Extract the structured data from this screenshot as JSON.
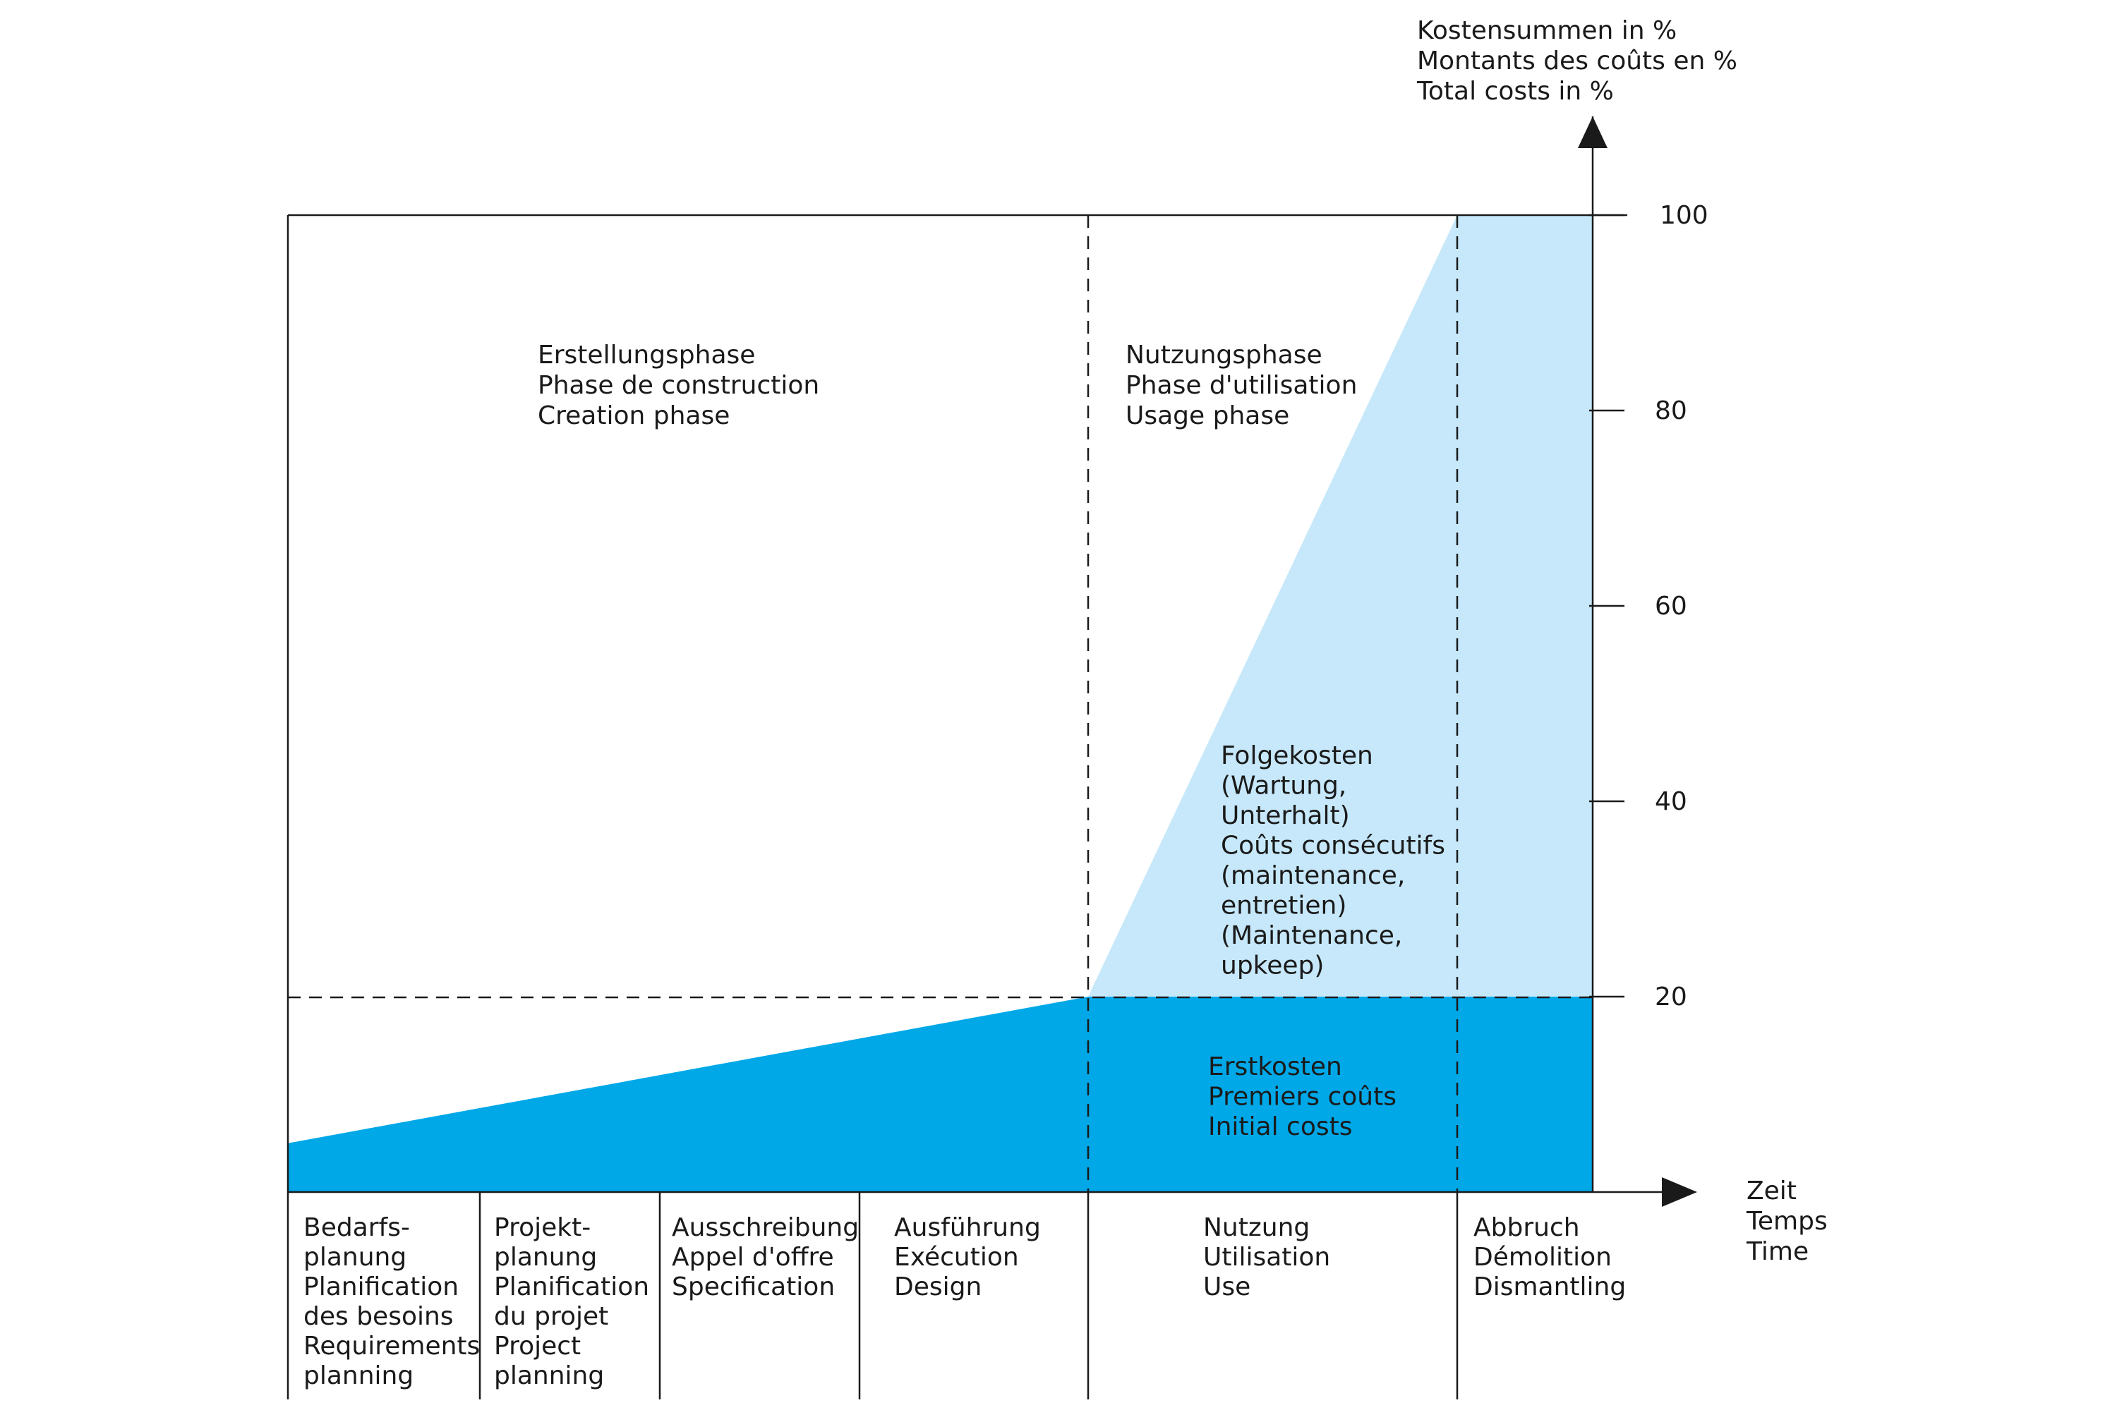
{
  "chart_data": {
    "type": "area",
    "y_axis_label": [
      "Kostensummen in %",
      "Montants des coûts en %",
      "Total costs in %"
    ],
    "x_axis_label": [
      "Zeit",
      "Temps",
      "Time"
    ],
    "y_ticks": [
      20,
      40,
      60,
      80,
      100
    ],
    "ylim": [
      0,
      100
    ],
    "phases": [
      {
        "id": "bedarf",
        "label": [
          "Bedarfs-",
          "planung",
          "Planification",
          "des besoins",
          "Requirements",
          "planning"
        ]
      },
      {
        "id": "projekt",
        "label": [
          "Projekt-",
          "planung",
          "Planification",
          "du projet",
          "Project",
          "planning"
        ]
      },
      {
        "id": "ausschreibung",
        "label": [
          "Ausschreibung",
          "Appel d'offre",
          "Specification"
        ]
      },
      {
        "id": "ausfuehrung",
        "label": [
          "Ausführung",
          "Exécution",
          "Design"
        ]
      },
      {
        "id": "nutzung",
        "label": [
          "Nutzung",
          "Utilisation",
          "Use"
        ]
      },
      {
        "id": "abbruch",
        "label": [
          "Abbruch",
          "Démolition",
          "Dismantling"
        ]
      }
    ],
    "period_labels": {
      "creation": [
        "Erstellungsphase",
        "Phase de construction",
        "Creation phase"
      ],
      "usage": [
        "Nutzungsphase",
        "Phase d'utilisation",
        "Usage phase"
      ]
    },
    "series": [
      {
        "name": [
          "Erstkosten",
          "Premiers coûts",
          "Initial costs"
        ],
        "color": "#00a8e8",
        "points": [
          {
            "at": "start of Bedarfsplanung",
            "y": 0
          },
          {
            "at": "start of Ausführung",
            "y": 5
          },
          {
            "at": "start of Nutzung",
            "y": 20
          },
          {
            "at": "end of Abbruch",
            "y": 20
          }
        ]
      },
      {
        "name": [
          "Folgekosten",
          "(Wartung,",
          "Unterhalt)",
          "Coûts consécutifs",
          "(maintenance,",
          "entretien)",
          "(Maintenance,",
          "upkeep)"
        ],
        "color": "#c6e8fa",
        "points": [
          {
            "at": "start of Nutzung",
            "y": 20
          },
          {
            "at": "start of Abbruch",
            "y": 100
          },
          {
            "at": "end of Abbruch",
            "y": 100
          }
        ]
      }
    ],
    "grid": false
  }
}
